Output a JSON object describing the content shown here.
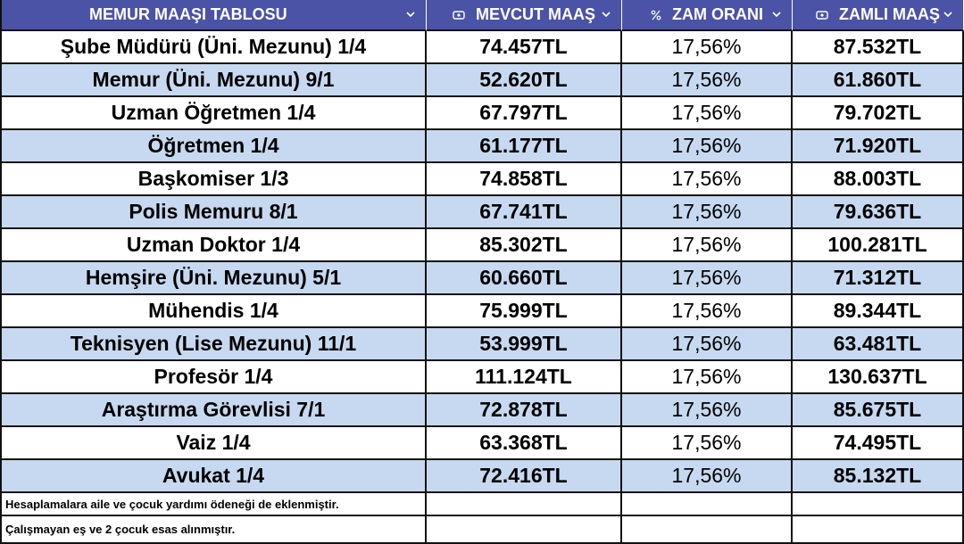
{
  "table": {
    "header": [
      "MEMUR MAAŞI TABLOSU",
      "MEVCUT MAAŞ",
      "ZAM ORANI",
      "ZAMLI MAAŞ"
    ],
    "rows": [
      [
        "Şube Müdürü (Üni. Mezunu) 1/4",
        "74.457TL",
        "17,56%",
        "87.532TL"
      ],
      [
        "Memur (Üni. Mezunu) 9/1",
        "52.620TL",
        "17,56%",
        "61.860TL"
      ],
      [
        "Uzman Öğretmen 1/4",
        "67.797TL",
        "17,56%",
        "79.702TL"
      ],
      [
        "Öğretmen 1/4",
        "61.177TL",
        "17,56%",
        "71.920TL"
      ],
      [
        "Başkomiser 1/3",
        "74.858TL",
        "17,56%",
        "88.003TL"
      ],
      [
        "Polis Memuru 8/1",
        "67.741TL",
        "17,56%",
        "79.636TL"
      ],
      [
        "Uzman Doktor 1/4",
        "85.302TL",
        "17,56%",
        "100.281TL"
      ],
      [
        "Hemşire (Üni. Mezunu) 5/1",
        "60.660TL",
        "17,56%",
        "71.312TL"
      ],
      [
        "Mühendis 1/4",
        "75.999TL",
        "17,56%",
        "89.344TL"
      ],
      [
        "Teknisyen (Lise Mezunu) 11/1",
        "53.999TL",
        "17,56%",
        "63.481TL"
      ],
      [
        "Profesör 1/4",
        "111.124TL",
        "17,56%",
        "130.637TL"
      ],
      [
        "Araştırma Görevlisi 7/1",
        "72.878TL",
        "17,56%",
        "85.675TL"
      ],
      [
        "Vaiz 1/4",
        "63.368TL",
        "17,56%",
        "74.495TL"
      ],
      [
        "Avukat 1/4",
        "72.416TL",
        "17,56%",
        "85.132TL"
      ]
    ],
    "notes": [
      "Hesaplamalara aile ve çocuk yardımı ödeneği de eklenmiştir.",
      "Çalışmayan eş ve 2 çocuk esas alınmıştır."
    ]
  }
}
